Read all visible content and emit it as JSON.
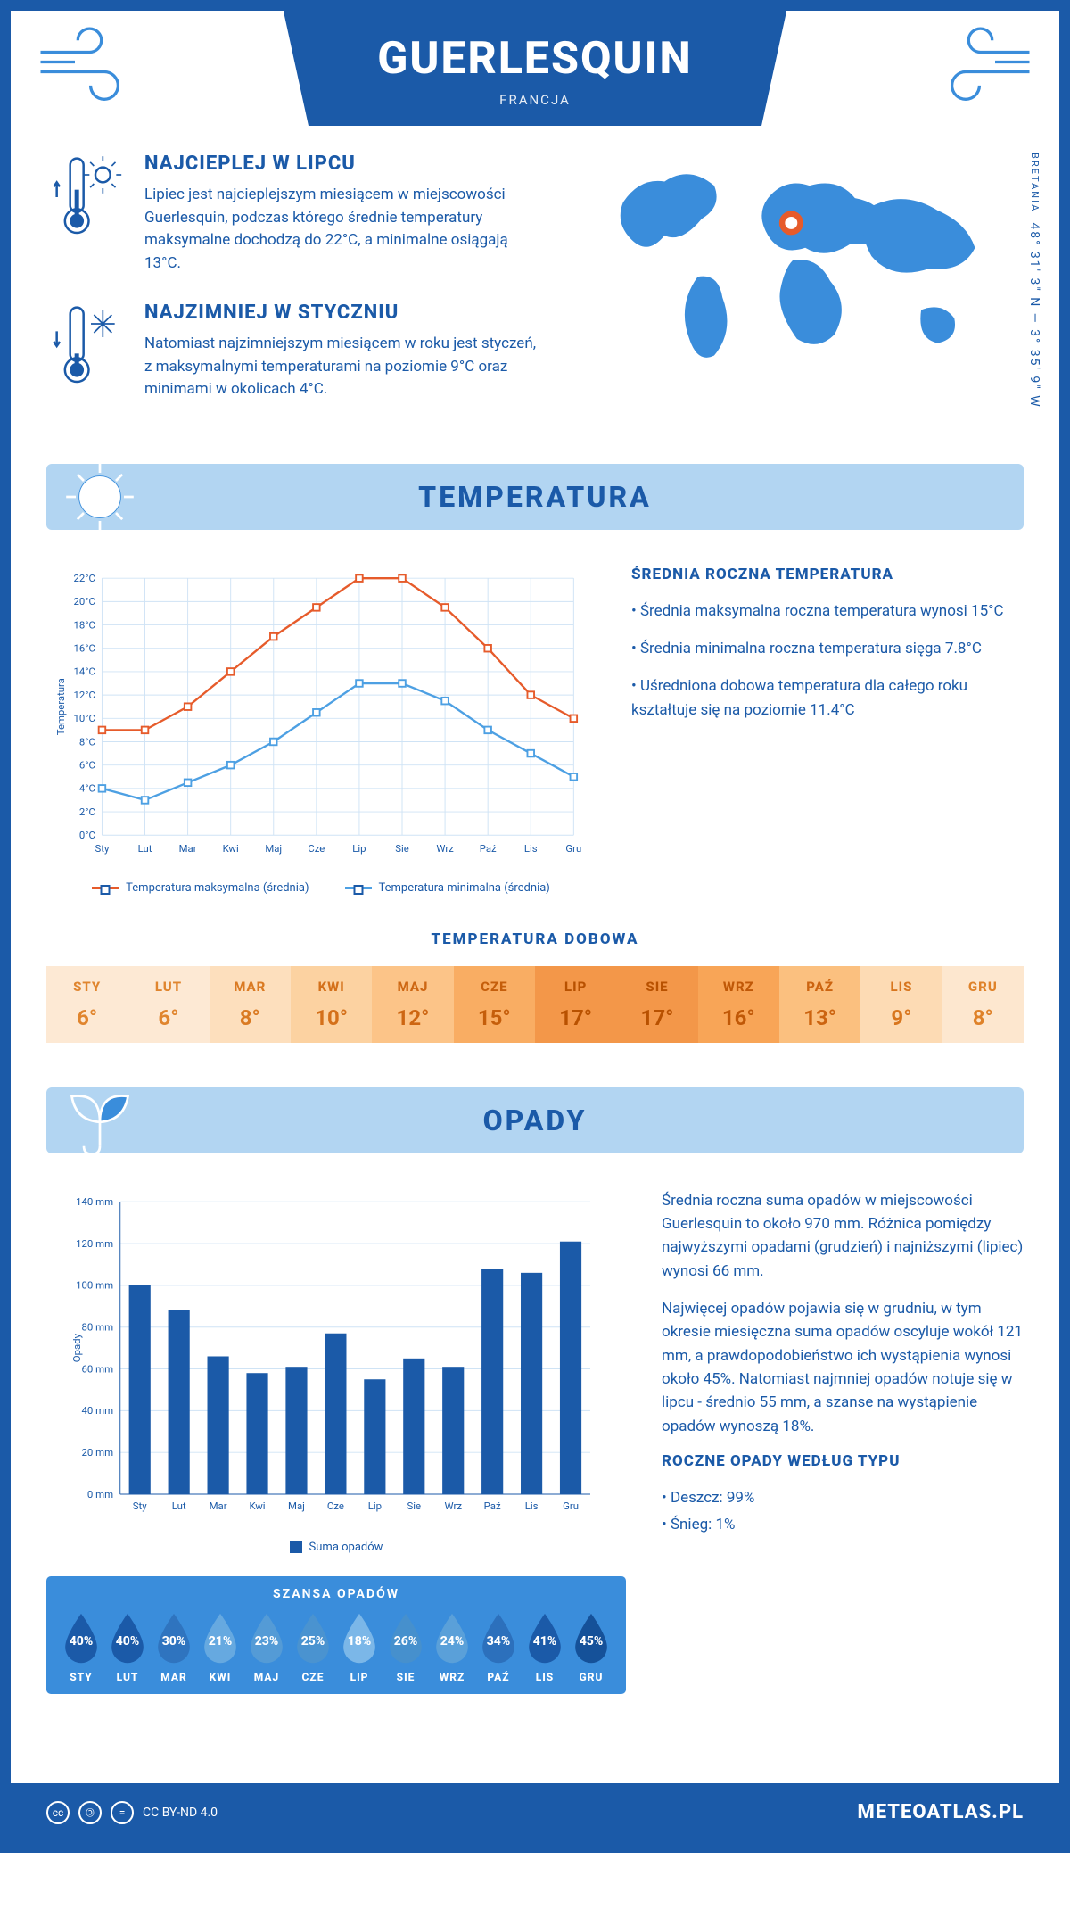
{
  "header": {
    "title": "GUERLESQUIN",
    "country": "FRANCJA"
  },
  "coords": {
    "region": "BRETANIA",
    "text": "48° 31' 3\" N — 3° 35' 9\" W"
  },
  "warm": {
    "heading": "NAJCIEPLEJ W LIPCU",
    "text": "Lipiec jest najcieplejszym miesiącem w miejscowości Guerlesquin, podczas którego średnie temperatury maksymalne dochodzą do 22°C, a minimalne osiągają 13°C."
  },
  "cold": {
    "heading": "NAJZIMNIEJ W STYCZNIU",
    "text": "Natomiast najzimniejszym miesiącem w roku jest styczeń, z maksymalnymi temperaturami na poziomie 9°C oraz minimami w okolicach 4°C."
  },
  "sections": {
    "temperature": "TEMPERATURA",
    "precip": "OPADY"
  },
  "months_short": [
    "Sty",
    "Lut",
    "Mar",
    "Kwi",
    "Maj",
    "Cze",
    "Lip",
    "Sie",
    "Wrz",
    "Paź",
    "Lis",
    "Gru"
  ],
  "months_upper": [
    "STY",
    "LUT",
    "MAR",
    "KWI",
    "MAJ",
    "CZE",
    "LIP",
    "SIE",
    "WRZ",
    "PAŹ",
    "LIS",
    "GRU"
  ],
  "temp_chart": {
    "type": "line",
    "ylabel": "Temperatura",
    "ylim": [
      0,
      22
    ],
    "ytick_step": 2,
    "max_series": {
      "label": "Temperatura maksymalna (średnia)",
      "color": "#e65b2b",
      "values": [
        9,
        9,
        11,
        14,
        17,
        19.5,
        22,
        22,
        19.5,
        16,
        12,
        10
      ]
    },
    "min_series": {
      "label": "Temperatura minimalna (średnia)",
      "color": "#4da0e3",
      "values": [
        4,
        3,
        4.5,
        6,
        8,
        10.5,
        13,
        13,
        11.5,
        9,
        7,
        5
      ]
    },
    "grid_color": "#cfe3f5",
    "background": "#ffffff",
    "line_width": 2.5,
    "marker_size": 4
  },
  "temp_info": {
    "heading": "ŚREDNIA ROCZNA TEMPERATURA",
    "b1": "• Średnia maksymalna roczna temperatura wynosi 15°C",
    "b2": "• Średnia minimalna roczna temperatura sięga 7.8°C",
    "b3": "• Uśredniona dobowa temperatura dla całego roku kształtuje się na poziomie 11.4°C"
  },
  "dobowa": {
    "title": "TEMPERATURA DOBOWA",
    "values": [
      "6°",
      "6°",
      "8°",
      "10°",
      "12°",
      "15°",
      "17°",
      "17°",
      "16°",
      "13°",
      "9°",
      "8°"
    ],
    "bg_colors": [
      "#fde9d4",
      "#fde9d4",
      "#fddfbd",
      "#fcd2a1",
      "#fcc488",
      "#f9ad63",
      "#f39749",
      "#f39749",
      "#f8a557",
      "#fbc07f",
      "#fddbb4",
      "#fde7cf"
    ],
    "text_colors": [
      "#e0852e",
      "#e0852e",
      "#da7a22",
      "#d4701a",
      "#cd6612",
      "#c55e0b",
      "#b85100",
      "#b85100",
      "#c05807",
      "#cc6410",
      "#d8761e",
      "#df8229"
    ]
  },
  "precip_chart": {
    "type": "bar",
    "ylabel": "Opady",
    "ylim": [
      0,
      140
    ],
    "ytick_step": 20,
    "color": "#1b5aa8",
    "bar_width": 0.55,
    "values": [
      100,
      88,
      66,
      58,
      61,
      77,
      55,
      65,
      61,
      108,
      106,
      121
    ],
    "legend_label": "Suma opadów"
  },
  "precip_text": {
    "p1": "Średnia roczna suma opadów w miejscowości Guerlesquin to około 970 mm. Różnica pomiędzy najwyższymi opadami (grudzień) i najniższymi (lipiec) wynosi 66 mm.",
    "p2": "Najwięcej opadów pojawia się w grudniu, w tym okresie miesięczna suma opadów oscyluje wokół 121 mm, a prawdopodobieństwo ich wystąpienia wynosi około 45%. Natomiast najmniej opadów notuje się w lipcu - średnio 55 mm, a szanse na wystąpienie opadów wynoszą 18%.",
    "type_heading": "ROCZNE OPADY WEDŁUG TYPU",
    "type_rain": "• Deszcz: 99%",
    "type_snow": "• Śnieg: 1%"
  },
  "szansa": {
    "title": "SZANSA OPADÓW",
    "pct": [
      "40%",
      "40%",
      "30%",
      "21%",
      "23%",
      "25%",
      "18%",
      "26%",
      "24%",
      "34%",
      "41%",
      "45%"
    ],
    "colors": [
      "#1b5aa8",
      "#1b5aa8",
      "#2f74bf",
      "#66a9e0",
      "#549bd6",
      "#4a93d0",
      "#7bb7e8",
      "#4690cd",
      "#5aa0d9",
      "#2c70bc",
      "#1b5aa8",
      "#155199"
    ]
  },
  "footer": {
    "license": "CC BY-ND 4.0",
    "brand": "METEOATLAS.PL"
  },
  "palette": {
    "primary": "#1b5aa8",
    "light": "#b2d5f2",
    "accent": "#3a8ddb"
  }
}
